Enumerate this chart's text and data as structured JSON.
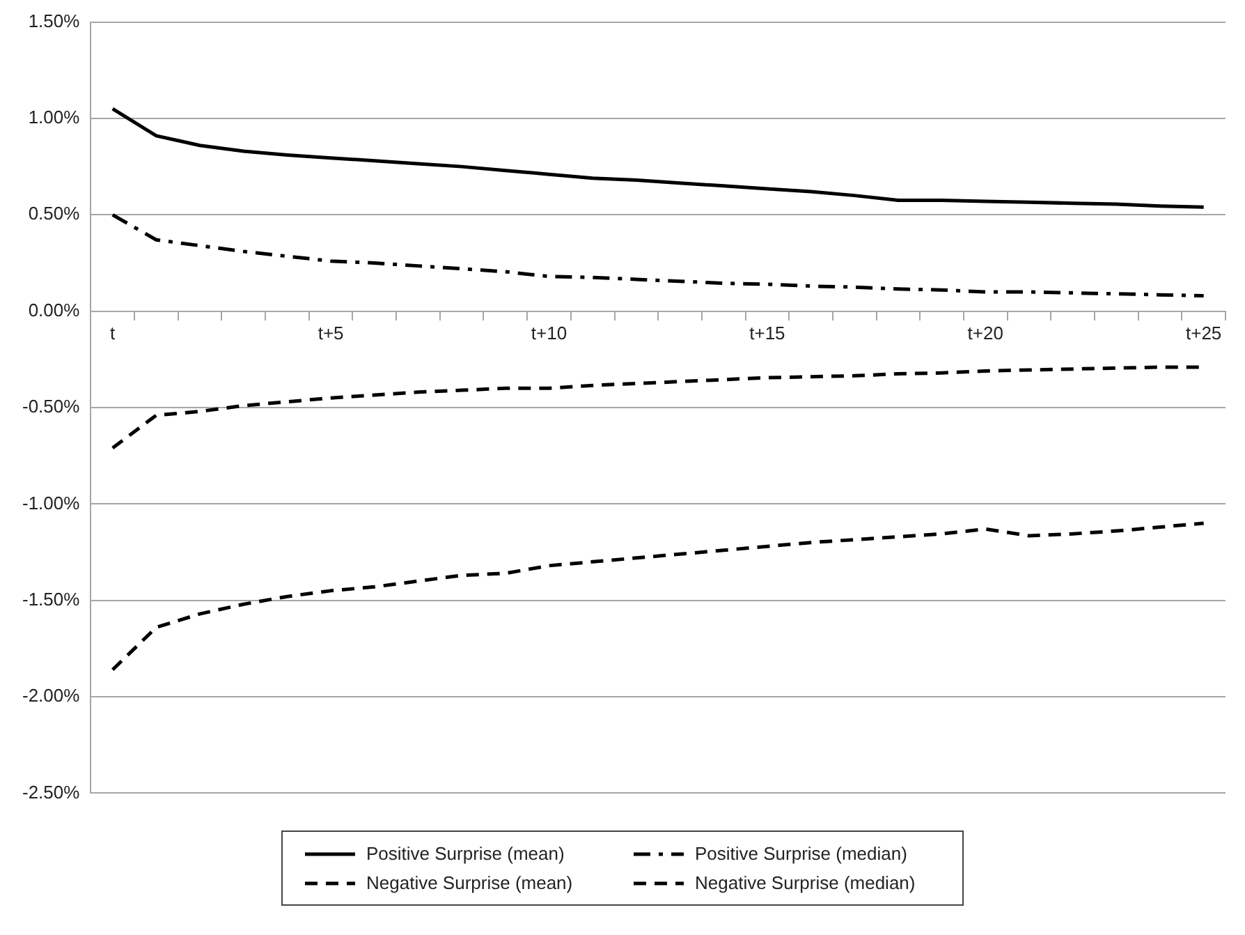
{
  "chart_data": {
    "type": "line",
    "categories": [
      "t",
      null,
      null,
      null,
      null,
      "t+5",
      null,
      null,
      null,
      null,
      "t+10",
      null,
      null,
      null,
      null,
      "t+15",
      null,
      null,
      null,
      null,
      "t+20",
      null,
      null,
      null,
      null,
      "t+25"
    ],
    "series": [
      {
        "name": "Positive Surprise (mean)",
        "color": "#000000",
        "line_style": "solid",
        "values": [
          1.05,
          0.91,
          0.86,
          0.83,
          0.81,
          0.795,
          0.78,
          0.765,
          0.75,
          0.73,
          0.71,
          0.69,
          0.68,
          0.665,
          0.65,
          0.635,
          0.62,
          0.6,
          0.575,
          0.575,
          0.57,
          0.565,
          0.56,
          0.555,
          0.545,
          0.54
        ]
      },
      {
        "name": "Positive Surprise (median)",
        "color": "#000000",
        "line_style": "dotted",
        "values": [
          0.5,
          0.37,
          0.34,
          0.31,
          0.285,
          0.26,
          0.25,
          0.235,
          0.22,
          0.205,
          0.18,
          0.175,
          0.165,
          0.155,
          0.145,
          0.14,
          0.13,
          0.125,
          0.115,
          0.11,
          0.1,
          0.1,
          0.095,
          0.09,
          0.085,
          0.08
        ]
      },
      {
        "name": "Negative Surprise (mean)",
        "color": "#000000",
        "line_style": "dashed",
        "values": [
          -1.86,
          -1.64,
          -1.57,
          -1.52,
          -1.48,
          -1.45,
          -1.43,
          -1.4,
          -1.37,
          -1.36,
          -1.32,
          -1.3,
          -1.28,
          -1.26,
          -1.24,
          -1.22,
          -1.2,
          -1.185,
          -1.17,
          -1.155,
          -1.13,
          -1.165,
          -1.155,
          -1.14,
          -1.12,
          -1.1
        ]
      },
      {
        "name": "Negative Surprise (median)",
        "color": "#000000",
        "line_style": "dashed",
        "values": [
          -0.71,
          -0.54,
          -0.52,
          -0.49,
          -0.47,
          -0.45,
          -0.435,
          -0.42,
          -0.41,
          -0.4,
          -0.4,
          -0.385,
          -0.375,
          -0.365,
          -0.355,
          -0.345,
          -0.34,
          -0.335,
          -0.325,
          -0.32,
          -0.31,
          -0.305,
          -0.3,
          -0.295,
          -0.29,
          -0.29
        ]
      }
    ],
    "ylim": [
      -2.5,
      1.5
    ],
    "yticks": [
      {
        "value": -2.5,
        "label": "-2.50%"
      },
      {
        "value": -2,
        "label": "-2.00%"
      },
      {
        "value": -1.5,
        "label": "-1.50%"
      },
      {
        "value": -1,
        "label": "-1.00%"
      },
      {
        "value": -0.5,
        "label": "-0.50%"
      },
      {
        "value": 0,
        "label": "0.00%"
      },
      {
        "value": 0.5,
        "label": "0.50%"
      },
      {
        "value": 1,
        "label": "1.00%"
      },
      {
        "value": 1.5,
        "label": "1.50%"
      }
    ],
    "grid": "y",
    "legend": "bottom",
    "marker": "none"
  }
}
